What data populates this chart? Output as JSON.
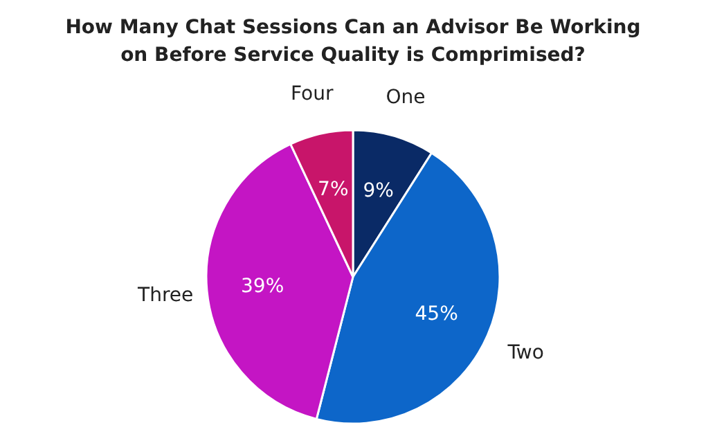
{
  "chart_data": {
    "type": "pie",
    "title": "How Many Chat Sessions Can an Advisor Be Working on Before Service Quality is Comprimised?",
    "categories": [
      "One",
      "Two",
      "Three",
      "Four"
    ],
    "values": [
      9,
      45,
      39,
      7
    ],
    "colors": [
      "#0a2a66",
      "#0d66c9",
      "#c415c4",
      "#c8156a"
    ],
    "value_labels": [
      "9%",
      "45%",
      "39%",
      "7%"
    ]
  }
}
